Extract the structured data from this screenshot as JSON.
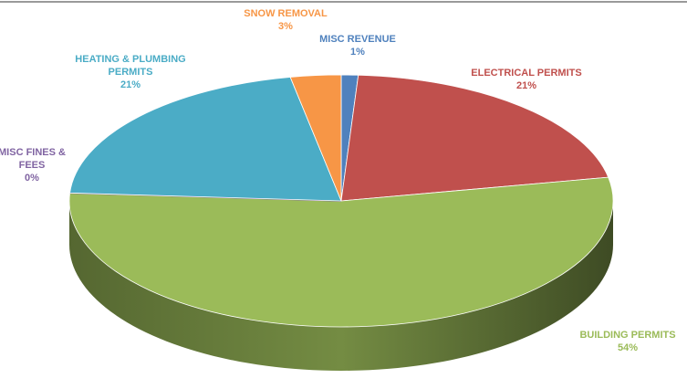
{
  "chart_data": {
    "type": "pie",
    "categories": [
      "MISC REVENUE",
      "ELECTRICAL PERMITS",
      "BUILDING PERMITS",
      "MISC FINES & FEES",
      "HEATING & PLUMBING PERMITS",
      "SNOW REMOVAL"
    ],
    "values": [
      1,
      21,
      54,
      0,
      21,
      3
    ],
    "value_labels": [
      "1%",
      "21%",
      "54%",
      "0%",
      "21%",
      "3%"
    ],
    "colors": [
      "#4f81bd",
      "#c0504d",
      "#9bbb59",
      "#8064a2",
      "#4bacc6",
      "#f79646"
    ]
  }
}
